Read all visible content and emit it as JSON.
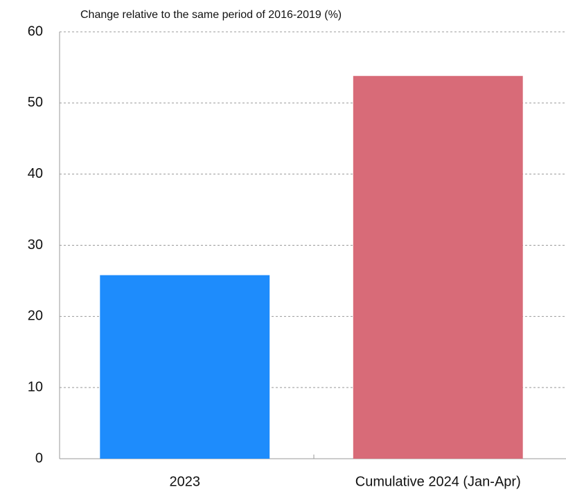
{
  "chart_data": {
    "type": "bar",
    "title": "Change relative to the same period of 2016-2019 (%)",
    "categories": [
      "2023",
      "Cumulative 2024 (Jan-Apr)"
    ],
    "values": [
      25.8,
      53.8
    ],
    "colors": [
      "#1e8cfc",
      "#d86b78"
    ],
    "ylim": [
      0,
      60
    ],
    "yticks": [
      0,
      10,
      20,
      30,
      40,
      50,
      60
    ],
    "grid": true
  }
}
